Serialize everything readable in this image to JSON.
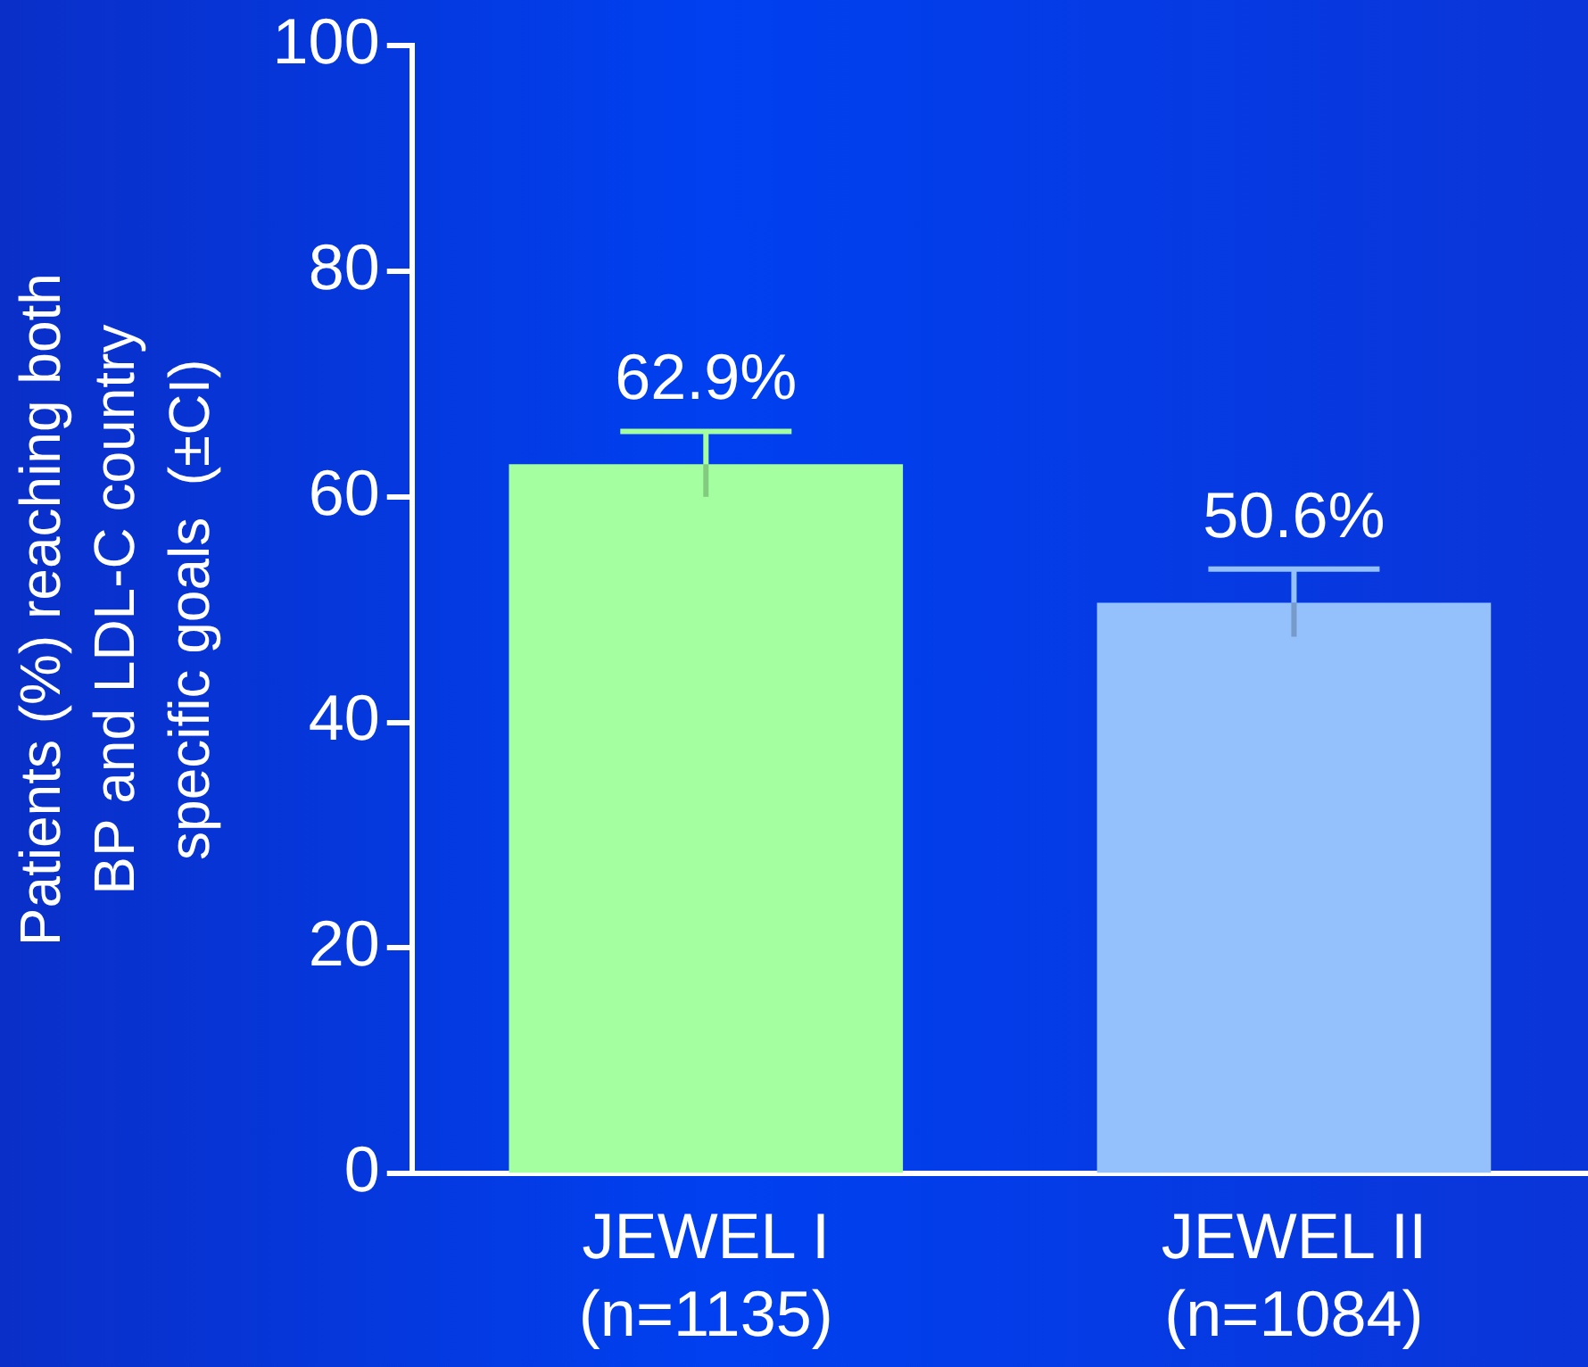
{
  "chart_data": {
    "type": "bar",
    "ylabel": "Patients (%) reaching both\nBP and LDL-C country\nspecific goals  (±CI)",
    "categories": [
      "JEWEL I\n(n=1135)",
      "JEWEL II\n(n=1084)"
    ],
    "values": [
      62.9,
      50.6
    ],
    "colors": [
      "#a3ff9f",
      "#94c0fb"
    ],
    "errors": [
      2.9,
      3.0
    ],
    "value_labels": [
      "62.9%",
      "50.6%"
    ],
    "ylim": [
      0,
      100
    ],
    "yticks": [
      0,
      20,
      40,
      60,
      80,
      100
    ],
    "grid": false,
    "legend": false
  }
}
